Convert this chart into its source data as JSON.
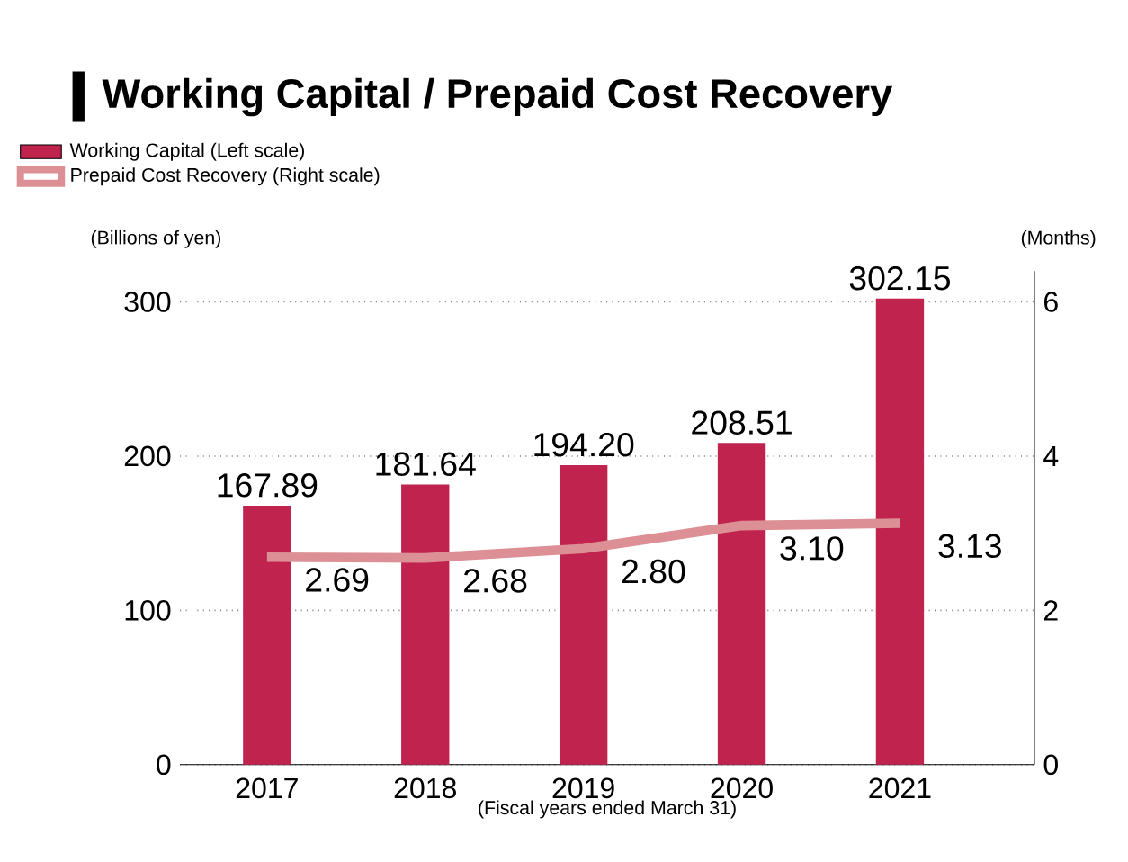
{
  "chart_data": {
    "type": "bar",
    "title": "Working Capital / Prepaid Cost Recovery",
    "categories": [
      "2017",
      "2018",
      "2019",
      "2020",
      "2021"
    ],
    "xlabel": "(Fiscal years ended March 31)",
    "ylabel": "(Billions of yen)",
    "y2label": "(Months)",
    "series": [
      {
        "name": "Working Capital (Left scale)",
        "color": "#c0234e",
        "values": [
          167.89,
          181.64,
          194.2,
          208.51,
          302.15
        ],
        "value_labels": [
          "167.89",
          "181.64",
          "194.20",
          "208.51",
          "302.15"
        ]
      },
      {
        "name": "Prepaid Cost Recovery (Right scale)",
        "type": "line",
        "axis": "y2",
        "color": "#dc8f94",
        "values": [
          2.69,
          2.68,
          2.8,
          3.1,
          3.13
        ],
        "value_labels": [
          "2.69",
          "2.68",
          "2.80",
          "3.10",
          "3.13"
        ]
      }
    ],
    "ylim": [
      0,
      320
    ],
    "yticks": [
      0,
      100,
      200,
      300
    ],
    "y2lim": [
      0,
      6.4
    ],
    "y2ticks": [
      0,
      2,
      4,
      6
    ],
    "grid": "y",
    "legend": "top left",
    "marker": "none"
  }
}
